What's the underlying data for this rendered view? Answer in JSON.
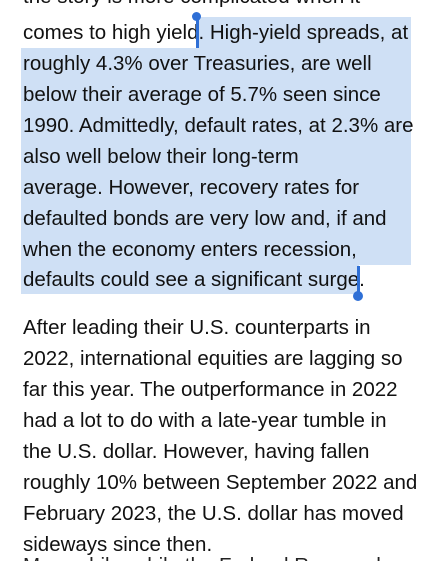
{
  "document": {
    "partial_top_line": "the story is more complicated when it",
    "paragraph1": {
      "line1_before": "comes to high yield",
      "line1_selected": ". High-yield spreads, at",
      "lines": [
        "roughly 4.3% over Treasuries, are well",
        "below their average of 5.7% seen since",
        "1990. Admittedly, default rates, at 2.3% are",
        "also well below their long-term",
        "average. However, recovery rates for",
        "defaulted bonds are very low and, if and",
        "when the economy enters recession,",
        "defaults could see a significant surge."
      ]
    },
    "paragraph2": {
      "lines": [
        "After leading their U.S. counterparts in",
        "2022, international equities are lagging so",
        "far this year. The outperformance in 2022",
        "had a lot to do with a late-year tumble in",
        "the U.S. dollar. However, having fallen",
        "roughly 10% between September 2022 and",
        "February 2023, the U.S. dollar has moved",
        "sideways since then."
      ]
    },
    "partial_bottom_line": "Meanwhile, while the Federal Reserve has"
  },
  "selection": {
    "highlight_color": "#cfe0f5",
    "handle_color": "#2e6fd6"
  }
}
